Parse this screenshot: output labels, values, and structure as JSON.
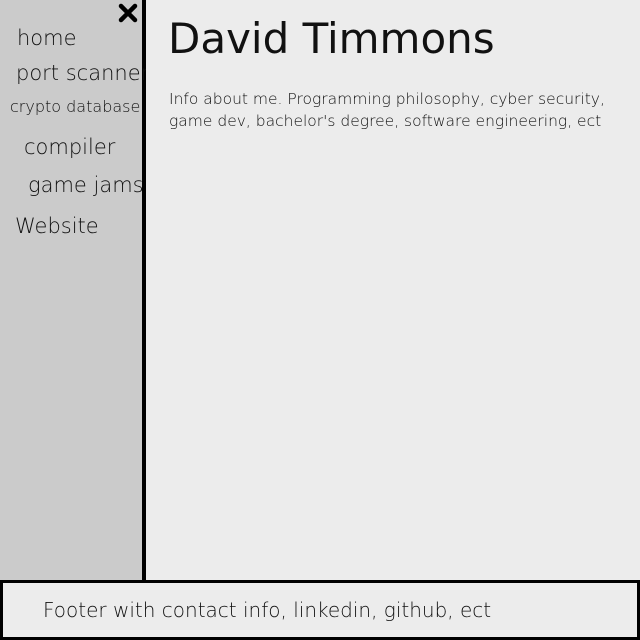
{
  "sidebar": {
    "close_icon": "close-icon",
    "items": [
      {
        "label": "home"
      },
      {
        "label": "port scanner"
      },
      {
        "label": "crypto database"
      },
      {
        "label": "compiler"
      },
      {
        "label": "game jams"
      },
      {
        "label": "Website"
      }
    ]
  },
  "main": {
    "title": "David Timmons",
    "about": "Info about me. Programming philosophy, cyber security, game dev, bachelor's degree, software engineering, ect"
  },
  "footer": {
    "text": "Footer with contact info, linkedin, github, ect"
  },
  "colors": {
    "sidebar_bg": "#cbcbcb",
    "page_bg": "#ececec",
    "border": "#000000"
  }
}
